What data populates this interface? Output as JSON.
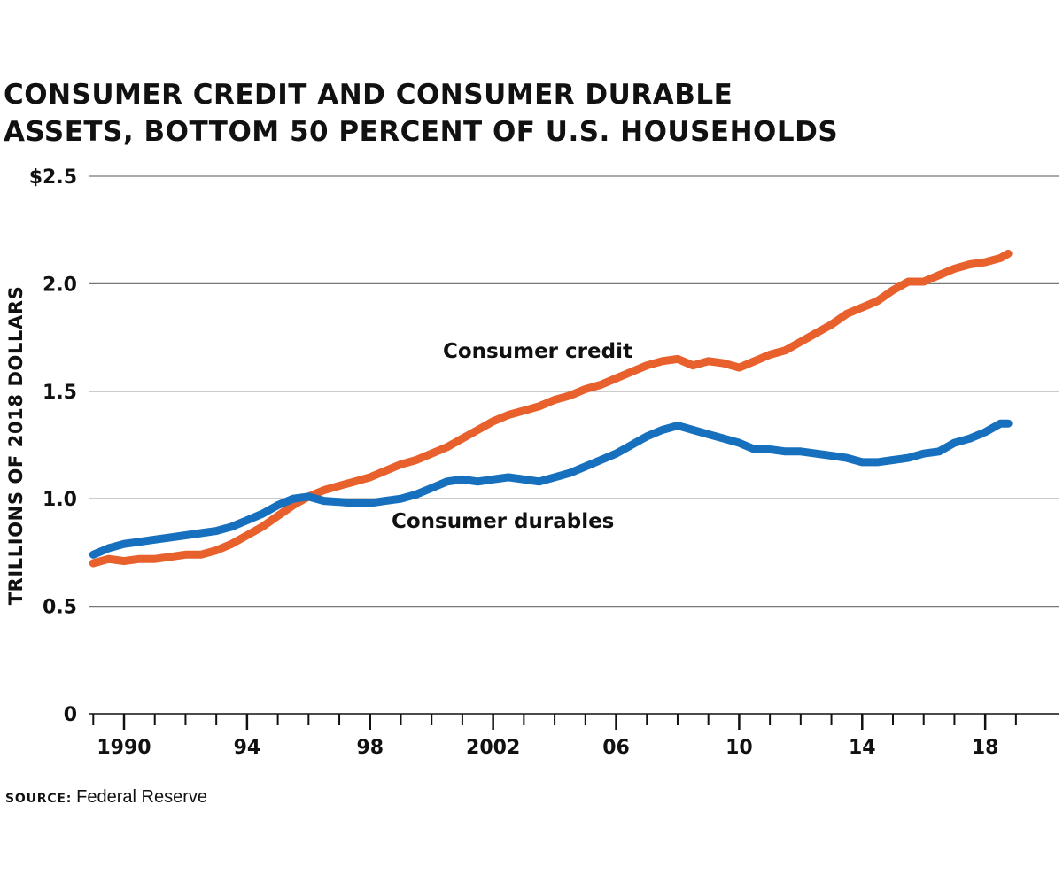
{
  "chart_data": {
    "type": "line",
    "title_lines": [
      "CONSUMER CREDIT AND CONSUMER DURABLE",
      "ASSETS, BOTTOM 50 PERCENT OF U.S. HOUSEHOLDS"
    ],
    "ylabel": "TRILLIONS OF 2018 DOLLARS",
    "xlabel": "",
    "ylim": [
      0,
      2.5
    ],
    "xlim": [
      1988.5,
      2020
    ],
    "y_ticks": [
      {
        "value": 0,
        "label": "0"
      },
      {
        "value": 0.5,
        "label": "0.5"
      },
      {
        "value": 1.0,
        "label": "1.0"
      },
      {
        "value": 1.5,
        "label": "1.5"
      },
      {
        "value": 2.0,
        "label": "2.0"
      },
      {
        "value": 2.5,
        "label": "$2.5"
      }
    ],
    "x_major_ticks": [
      {
        "value": 1990,
        "label": "1990"
      },
      {
        "value": 1994,
        "label": "94"
      },
      {
        "value": 1998,
        "label": "98"
      },
      {
        "value": 2002,
        "label": "2002"
      },
      {
        "value": 2006,
        "label": "06"
      },
      {
        "value": 2010,
        "label": "10"
      },
      {
        "value": 2014,
        "label": "14"
      },
      {
        "value": 2018,
        "label": "18"
      }
    ],
    "grid": true,
    "series": [
      {
        "name": "Consumer credit",
        "color": "#E8602C",
        "label_position": "above line",
        "points": [
          [
            1989.0,
            0.7
          ],
          [
            1989.5,
            0.72
          ],
          [
            1990.0,
            0.71
          ],
          [
            1990.5,
            0.72
          ],
          [
            1991.0,
            0.72
          ],
          [
            1991.5,
            0.73
          ],
          [
            1992.0,
            0.74
          ],
          [
            1992.5,
            0.74
          ],
          [
            1993.0,
            0.76
          ],
          [
            1993.5,
            0.79
          ],
          [
            1994.0,
            0.83
          ],
          [
            1994.5,
            0.87
          ],
          [
            1995.0,
            0.92
          ],
          [
            1995.5,
            0.97
          ],
          [
            1996.0,
            1.01
          ],
          [
            1996.5,
            1.04
          ],
          [
            1997.0,
            1.06
          ],
          [
            1997.5,
            1.08
          ],
          [
            1998.0,
            1.1
          ],
          [
            1998.5,
            1.13
          ],
          [
            1999.0,
            1.16
          ],
          [
            1999.5,
            1.18
          ],
          [
            2000.0,
            1.21
          ],
          [
            2000.5,
            1.24
          ],
          [
            2001.0,
            1.28
          ],
          [
            2001.5,
            1.32
          ],
          [
            2002.0,
            1.36
          ],
          [
            2002.5,
            1.39
          ],
          [
            2003.0,
            1.41
          ],
          [
            2003.5,
            1.43
          ],
          [
            2004.0,
            1.46
          ],
          [
            2004.5,
            1.48
          ],
          [
            2005.0,
            1.51
          ],
          [
            2005.5,
            1.53
          ],
          [
            2006.0,
            1.56
          ],
          [
            2006.5,
            1.59
          ],
          [
            2007.0,
            1.62
          ],
          [
            2007.5,
            1.64
          ],
          [
            2008.0,
            1.65
          ],
          [
            2008.5,
            1.62
          ],
          [
            2009.0,
            1.64
          ],
          [
            2009.5,
            1.63
          ],
          [
            2010.0,
            1.61
          ],
          [
            2010.5,
            1.64
          ],
          [
            2011.0,
            1.67
          ],
          [
            2011.5,
            1.69
          ],
          [
            2012.0,
            1.73
          ],
          [
            2012.5,
            1.77
          ],
          [
            2013.0,
            1.81
          ],
          [
            2013.5,
            1.86
          ],
          [
            2014.0,
            1.89
          ],
          [
            2014.5,
            1.92
          ],
          [
            2015.0,
            1.97
          ],
          [
            2015.5,
            2.01
          ],
          [
            2016.0,
            2.01
          ],
          [
            2016.5,
            2.04
          ],
          [
            2017.0,
            2.07
          ],
          [
            2017.5,
            2.09
          ],
          [
            2018.0,
            2.1
          ],
          [
            2018.5,
            2.12
          ],
          [
            2018.75,
            2.14
          ]
        ]
      },
      {
        "name": "Consumer durables",
        "color": "#1670BE",
        "label_position": "below line",
        "points": [
          [
            1989.0,
            0.74
          ],
          [
            1989.5,
            0.77
          ],
          [
            1990.0,
            0.79
          ],
          [
            1990.5,
            0.8
          ],
          [
            1991.0,
            0.81
          ],
          [
            1991.5,
            0.82
          ],
          [
            1992.0,
            0.83
          ],
          [
            1992.5,
            0.84
          ],
          [
            1993.0,
            0.85
          ],
          [
            1993.5,
            0.87
          ],
          [
            1994.0,
            0.9
          ],
          [
            1994.5,
            0.93
          ],
          [
            1995.0,
            0.97
          ],
          [
            1995.5,
            1.0
          ],
          [
            1996.0,
            1.01
          ],
          [
            1996.5,
            0.99
          ],
          [
            1997.0,
            0.985
          ],
          [
            1997.5,
            0.98
          ],
          [
            1998.0,
            0.98
          ],
          [
            1998.5,
            0.99
          ],
          [
            1999.0,
            1.0
          ],
          [
            1999.5,
            1.02
          ],
          [
            2000.0,
            1.05
          ],
          [
            2000.5,
            1.08
          ],
          [
            2001.0,
            1.09
          ],
          [
            2001.5,
            1.08
          ],
          [
            2002.0,
            1.09
          ],
          [
            2002.5,
            1.1
          ],
          [
            2003.0,
            1.09
          ],
          [
            2003.5,
            1.08
          ],
          [
            2004.0,
            1.1
          ],
          [
            2004.5,
            1.12
          ],
          [
            2005.0,
            1.15
          ],
          [
            2005.5,
            1.18
          ],
          [
            2006.0,
            1.21
          ],
          [
            2006.5,
            1.25
          ],
          [
            2007.0,
            1.29
          ],
          [
            2007.5,
            1.32
          ],
          [
            2008.0,
            1.34
          ],
          [
            2008.5,
            1.32
          ],
          [
            2009.0,
            1.3
          ],
          [
            2009.5,
            1.28
          ],
          [
            2010.0,
            1.26
          ],
          [
            2010.5,
            1.23
          ],
          [
            2011.0,
            1.23
          ],
          [
            2011.5,
            1.22
          ],
          [
            2012.0,
            1.22
          ],
          [
            2012.5,
            1.21
          ],
          [
            2013.0,
            1.2
          ],
          [
            2013.5,
            1.19
          ],
          [
            2014.0,
            1.17
          ],
          [
            2014.5,
            1.17
          ],
          [
            2015.0,
            1.18
          ],
          [
            2015.5,
            1.19
          ],
          [
            2016.0,
            1.21
          ],
          [
            2016.5,
            1.22
          ],
          [
            2017.0,
            1.26
          ],
          [
            2017.5,
            1.28
          ],
          [
            2018.0,
            1.31
          ],
          [
            2018.5,
            1.35
          ],
          [
            2018.75,
            1.35
          ]
        ]
      }
    ],
    "source_label": "SOURCE:",
    "source_text": "Federal Reserve"
  }
}
